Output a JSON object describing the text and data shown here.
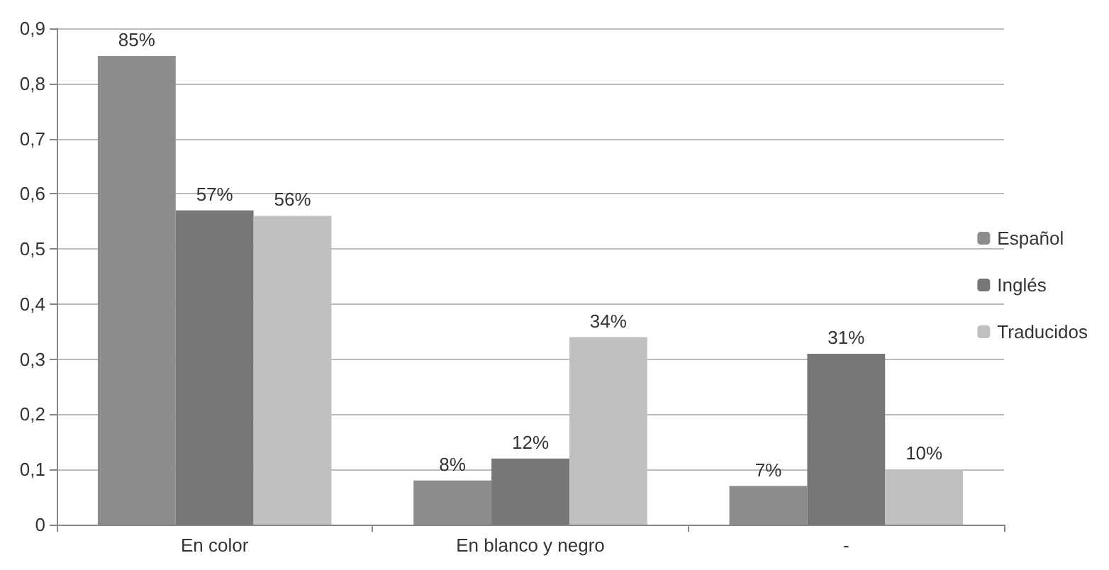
{
  "chart_data": {
    "type": "bar",
    "categories": [
      "En color",
      "En blanco y negro",
      "-"
    ],
    "series": [
      {
        "name": "Español",
        "color": "#8c8c8c",
        "values": [
          0.85,
          0.08,
          0.07
        ],
        "value_labels": [
          "85%",
          "8%",
          "7%"
        ]
      },
      {
        "name": "Inglés",
        "color": "#777777",
        "values": [
          0.57,
          0.12,
          0.31
        ],
        "value_labels": [
          "57%",
          "12%",
          "31%"
        ]
      },
      {
        "name": "Traducidos",
        "color": "#c0c0c0",
        "values": [
          0.56,
          0.34,
          0.1
        ],
        "value_labels": [
          "56%",
          "34%",
          "10%"
        ]
      }
    ],
    "ylim": [
      0,
      0.9
    ],
    "yticks": [
      0,
      {
        "value": 0.1,
        "label": "0,1"
      },
      {
        "value": 0.2,
        "label": "0,2"
      },
      {
        "value": 0.3,
        "label": "0,3"
      },
      {
        "value": 0.4,
        "label": "0,4"
      },
      {
        "value": 0.5,
        "label": "0,5"
      },
      {
        "value": 0.6,
        "label": "0,6"
      },
      {
        "value": 0.7,
        "label": "0,7"
      },
      {
        "value": 0.8,
        "label": "0,8"
      },
      {
        "value": 0.9,
        "label": "0,9"
      }
    ],
    "grid": "y",
    "legend": "right"
  }
}
